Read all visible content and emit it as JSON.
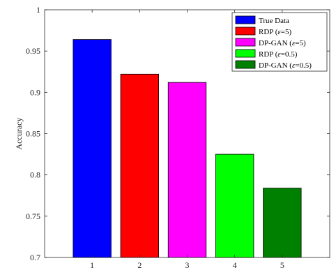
{
  "chart_data": {
    "type": "bar",
    "categories": [
      "1",
      "2",
      "3",
      "4",
      "5"
    ],
    "values": [
      0.964,
      0.922,
      0.912,
      0.825,
      0.784
    ],
    "bar_colors": [
      "#0000ff",
      "#ff0000",
      "#ff00ff",
      "#00ff00",
      "#008000"
    ],
    "ylabel": "Accuracy",
    "xlabel": "",
    "ylim": [
      0.7,
      1.0
    ],
    "yticks": [
      "0.7",
      "0.75",
      "0.8",
      "0.85",
      "0.9",
      "0.95",
      "1"
    ],
    "grid": false,
    "legend_position": "top-right",
    "legend": [
      {
        "pre": "True Data",
        "sym": "",
        "post": ""
      },
      {
        "pre": "RDP (",
        "sym": "ε",
        "post": "=5)"
      },
      {
        "pre": "DP-GAN (",
        "sym": "ε",
        "post": "=5)"
      },
      {
        "pre": "RDP (",
        "sym": "ε",
        "post": "=0.5)"
      },
      {
        "pre": "DP-GAN (",
        "sym": "ε",
        "post": "=0.5)"
      }
    ]
  }
}
